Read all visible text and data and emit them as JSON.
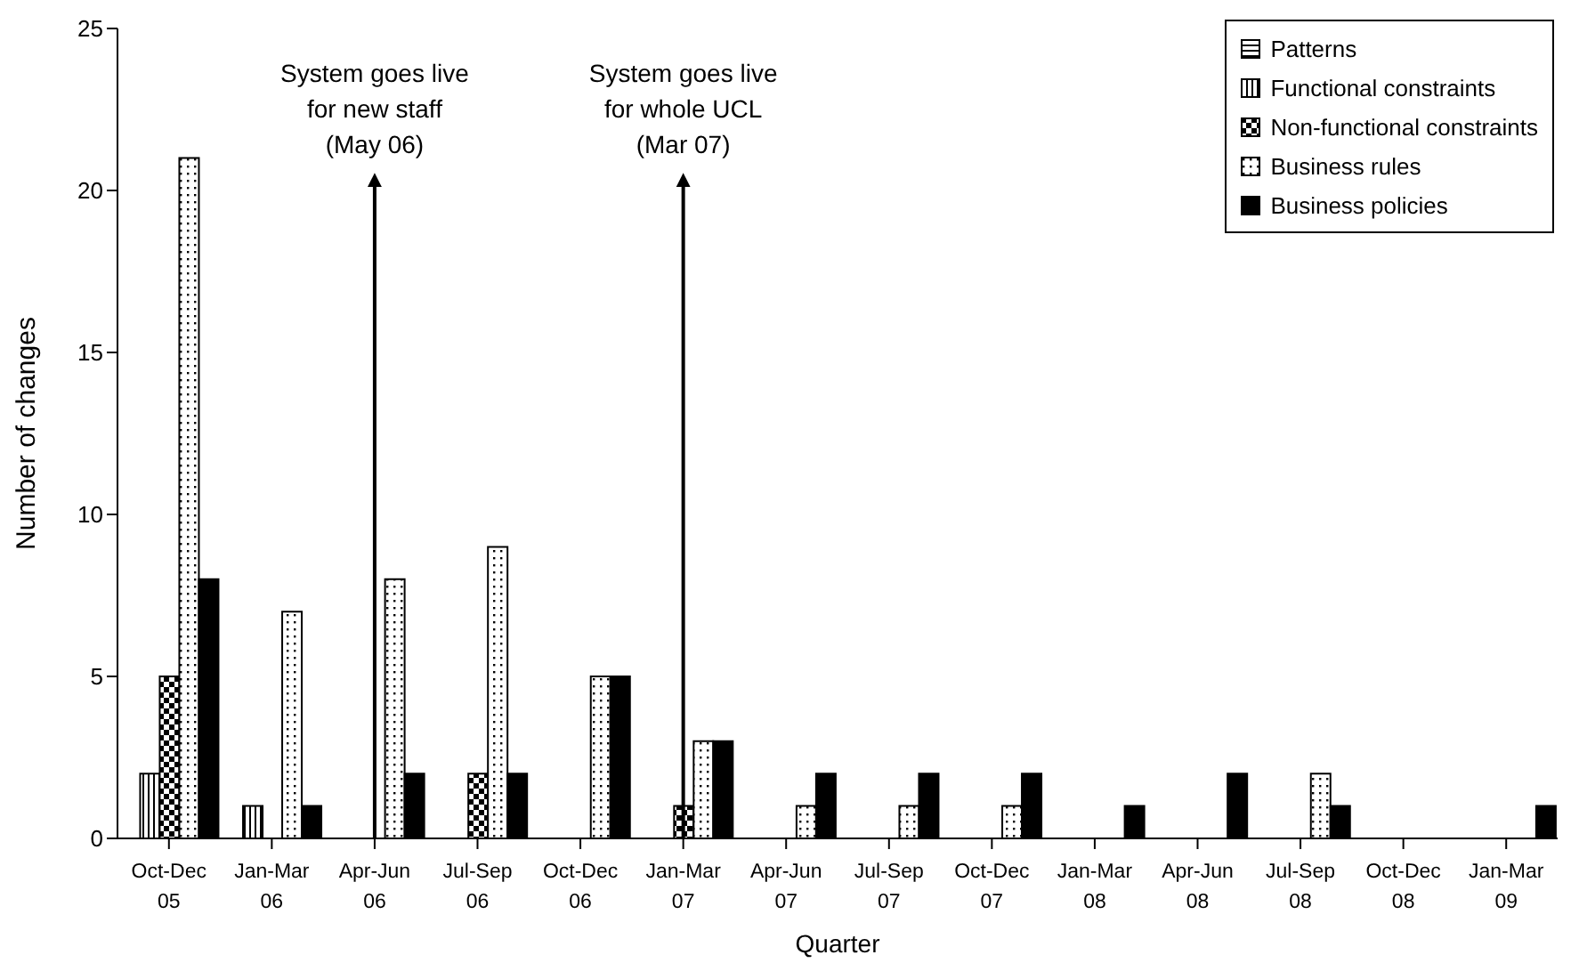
{
  "chart_data": {
    "type": "bar",
    "xlabel": "Quarter",
    "ylabel": "Number of changes",
    "categories": [
      "Oct-Dec 05",
      "Jan-Mar 06",
      "Apr-Jun 06",
      "Jul-Sep 06",
      "Oct-Dec 06",
      "Jan-Mar 07",
      "Apr-Jun 07",
      "Jul-Sep 07",
      "Oct-Dec 07",
      "Jan-Mar 08",
      "Apr-Jun 08",
      "Jul-Sep 08",
      "Oct-Dec 08",
      "Jan-Mar 09"
    ],
    "series": [
      {
        "name": "Patterns",
        "color": "#000000",
        "values": [
          0,
          0,
          0,
          0,
          0,
          0,
          0,
          0,
          0,
          0,
          0,
          0,
          0,
          0
        ]
      },
      {
        "name": "Functional constraints",
        "color": "#000000",
        "values": [
          2,
          1,
          0,
          0,
          0,
          0,
          0,
          0,
          0,
          0,
          0,
          0,
          0,
          0
        ]
      },
      {
        "name": "Non-functional constraints",
        "color": "#000000",
        "values": [
          5,
          0,
          0,
          2,
          0,
          1,
          0,
          0,
          0,
          0,
          0,
          0,
          0,
          0
        ]
      },
      {
        "name": "Business rules",
        "color": "#000000",
        "values": [
          21,
          7,
          8,
          9,
          5,
          3,
          1,
          1,
          1,
          0,
          0,
          2,
          0,
          0
        ]
      },
      {
        "name": "Business policies",
        "color": "#000000",
        "values": [
          8,
          1,
          2,
          2,
          5,
          3,
          2,
          2,
          2,
          1,
          2,
          1,
          0,
          1
        ]
      }
    ],
    "ylim": [
      0,
      25
    ],
    "yticks": [
      0,
      5,
      10,
      15,
      20,
      25
    ],
    "grid": false,
    "legend": "top right",
    "ref_lines": [
      {
        "axis": "x",
        "value": "Apr-Jun 06",
        "label": "System goes live\nfor new staff\n(May 06)"
      },
      {
        "axis": "x",
        "value": "Jan-Mar 07",
        "label": "System goes live\nfor whole UCL\n(Mar 07)"
      }
    ]
  }
}
